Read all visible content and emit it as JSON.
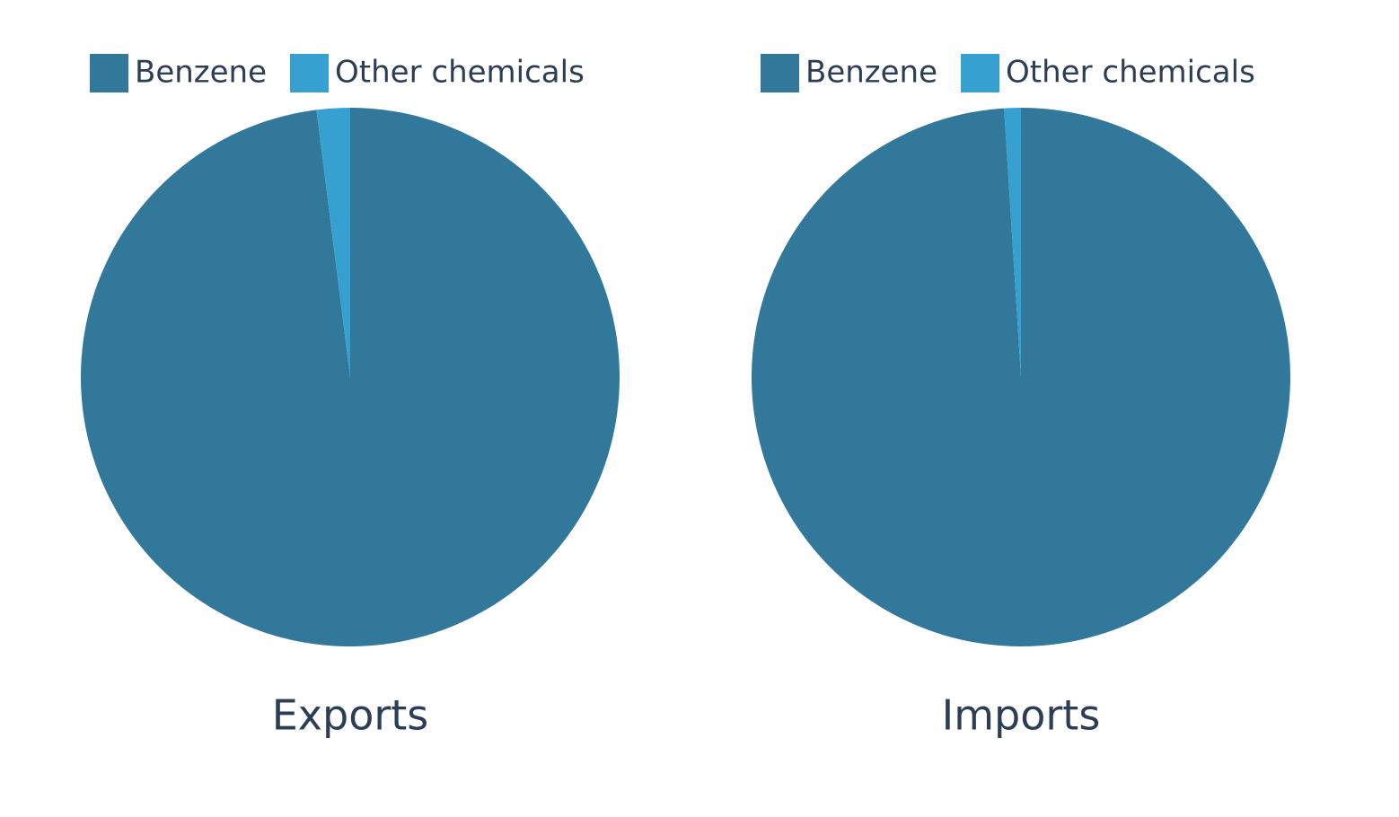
{
  "chart_data": [
    {
      "type": "pie",
      "title": "Exports",
      "categories": [
        "Benzene",
        "Other chemicals"
      ],
      "values": [
        98,
        2
      ],
      "colors": [
        "#31789b",
        "#36a0d0"
      ]
    },
    {
      "type": "pie",
      "title": "Imports",
      "categories": [
        "Benzene",
        "Other chemicals"
      ],
      "values": [
        99,
        1
      ],
      "colors": [
        "#31789b",
        "#36a0d0"
      ]
    }
  ]
}
